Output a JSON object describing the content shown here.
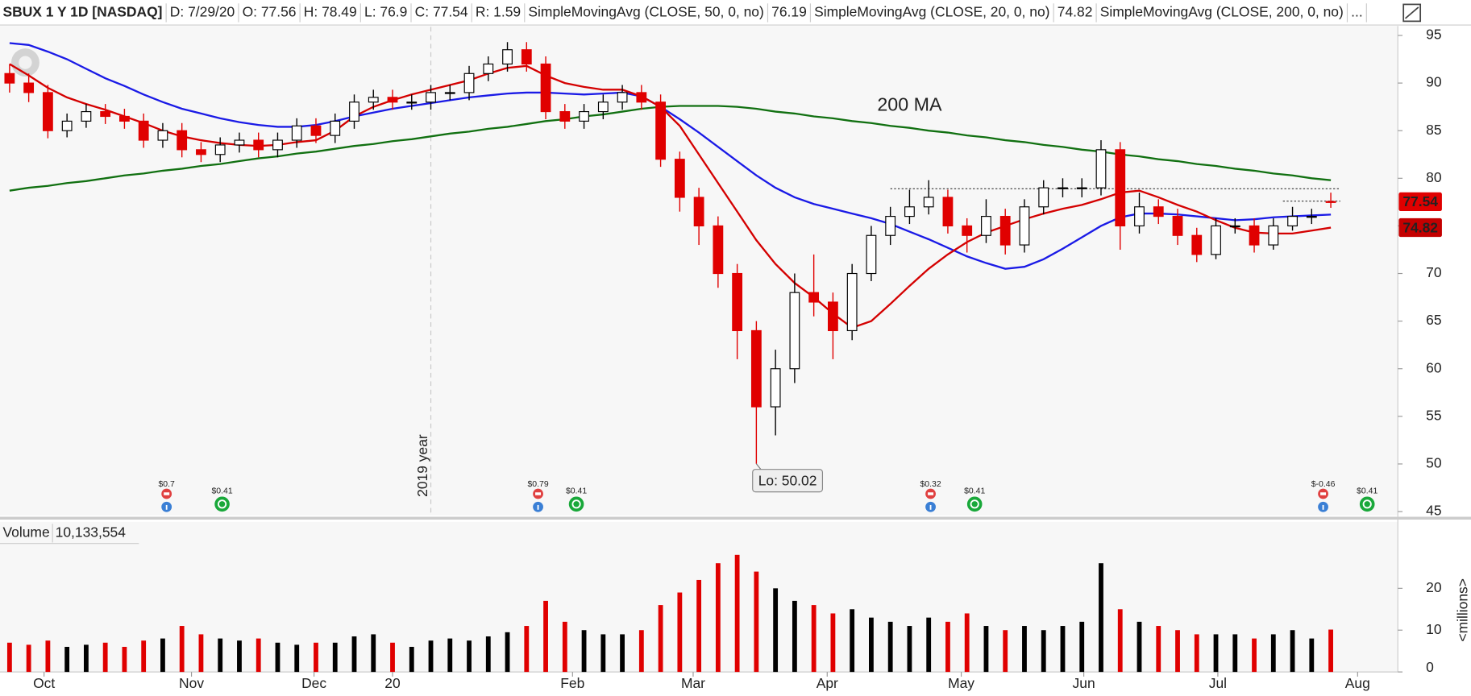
{
  "chart_data": {
    "type": "candlestick",
    "header": {
      "symbol": "SBUX 1 Y 1D [NASDAQ]",
      "fields": [
        "D: 7/29/20",
        "O: 77.56",
        "H: 78.49",
        "L: 76.9",
        "C: 77.54",
        "R: 1.59"
      ],
      "more": "..."
    },
    "xlim": [
      -0.5,
      72.5
    ],
    "xticks": [
      {
        "value": 1.8,
        "label": "Oct"
      },
      {
        "value": 9.5,
        "label": "Nov"
      },
      {
        "value": 15.9,
        "label": "Dec"
      },
      {
        "value": 20,
        "label": "20"
      },
      {
        "value": 29.4,
        "label": "Feb"
      },
      {
        "value": 35.7,
        "label": "Mar"
      },
      {
        "value": 42.7,
        "label": "Apr"
      },
      {
        "value": 49.7,
        "label": "May"
      },
      {
        "value": 56.1,
        "label": "Jun"
      },
      {
        "value": 63.1,
        "label": "Jul"
      },
      {
        "value": 70.4,
        "label": "Aug"
      }
    ],
    "ylim": [
      44.7,
      95.9
    ],
    "yticks": [
      45,
      50,
      55,
      60,
      65,
      70,
      75,
      80,
      85,
      90,
      95
    ],
    "colors": {
      "up": "#000000",
      "down": "#e00000"
    },
    "candles": {
      "open": [
        91,
        90,
        89,
        85,
        86,
        87,
        86.5,
        86,
        84,
        85,
        83,
        82.5,
        83.5,
        84,
        83,
        84,
        85.5,
        84.5,
        86,
        88,
        88.5,
        88,
        88,
        89,
        89,
        91,
        92,
        93.5,
        92,
        87,
        86,
        87,
        88,
        89,
        88,
        82,
        78,
        75,
        70,
        64,
        56,
        60,
        68,
        67,
        64,
        70,
        74,
        76,
        77,
        78,
        75,
        74,
        76,
        73,
        77,
        79,
        79,
        79,
        83,
        75,
        77,
        76,
        74,
        72,
        75,
        75,
        73,
        75,
        76,
        77.56
      ],
      "high": [
        92,
        91,
        89.8,
        86.8,
        87.8,
        87.8,
        87.3,
        86.8,
        85.8,
        85.8,
        83.8,
        84.3,
        84.8,
        84.8,
        84.8,
        86.3,
        86.3,
        86.8,
        88.8,
        89.3,
        89.3,
        88.8,
        89.8,
        89.8,
        91.8,
        92.8,
        94.3,
        94.3,
        92.8,
        87.8,
        87.8,
        88.8,
        89.8,
        89.8,
        88.8,
        82.8,
        79,
        76,
        71,
        65,
        62,
        70,
        72,
        68,
        71,
        75,
        77,
        78.8,
        79.8,
        78.8,
        75.8,
        77.8,
        76.8,
        77.8,
        79.8,
        80,
        80,
        84,
        83.8,
        78.5,
        77.8,
        76.8,
        74.8,
        75.8,
        75.8,
        75.8,
        75.8,
        77,
        76.8,
        78.49
      ],
      "low": [
        89,
        88,
        84.2,
        84.3,
        85.3,
        85.7,
        85.2,
        83.2,
        83.2,
        82.2,
        81.7,
        81.7,
        82.7,
        82.2,
        82.2,
        83.2,
        83.7,
        83.7,
        85.2,
        87.2,
        87.2,
        87.2,
        87.2,
        88.2,
        88.2,
        90.2,
        91.2,
        91.2,
        86.2,
        85.2,
        85.2,
        86.2,
        87.2,
        87.2,
        81.2,
        76.5,
        73,
        68.5,
        61,
        50.02,
        53,
        58.5,
        65.5,
        61,
        63,
        69.2,
        73,
        75.2,
        76.2,
        74.2,
        72.2,
        73.2,
        72,
        72.2,
        76.2,
        78,
        78,
        78.2,
        72.5,
        74.2,
        75.2,
        73,
        71.2,
        71.5,
        74.2,
        72.2,
        72.5,
        74.5,
        75.2,
        76.9
      ],
      "close": [
        90,
        89,
        85,
        86,
        87,
        86.5,
        86,
        84,
        85,
        83,
        82.5,
        83.5,
        84,
        83,
        84,
        85.5,
        84.5,
        86,
        88,
        88.5,
        88,
        88,
        89,
        89,
        91,
        92,
        93.5,
        92,
        87,
        86,
        87,
        88,
        89,
        88,
        82,
        78,
        75,
        70,
        64,
        56,
        60,
        68,
        67,
        64,
        70,
        74,
        76,
        77,
        78,
        75,
        74,
        76,
        73,
        77,
        79,
        79,
        79,
        83,
        75,
        77,
        76,
        74,
        72,
        75,
        75,
        73,
        75,
        76,
        76,
        77.54
      ]
    },
    "series": [
      {
        "name": "SimpleMovingAvg (CLOSE, 50, 0, no)",
        "color": "#1a1ae6",
        "last": 76.19,
        "values": [
          94.2,
          94,
          93.3,
          92.5,
          91.5,
          90.5,
          89.7,
          88.8,
          88,
          87.3,
          86.8,
          86.3,
          85.9,
          85.6,
          85.4,
          85.4,
          85.6,
          86,
          86.5,
          86.9,
          87.3,
          87.6,
          87.9,
          88.2,
          88.5,
          88.7,
          88.9,
          89,
          89,
          88.9,
          88.8,
          88.9,
          89,
          88.6,
          87.5,
          86.2,
          84.8,
          83.3,
          81.8,
          80.3,
          79,
          78,
          77.3,
          76.8,
          76.3,
          75.8,
          75.2,
          74.4,
          73.6,
          72.7,
          71.8,
          71.1,
          70.5,
          70.7,
          71.5,
          72.6,
          73.8,
          75,
          75.9,
          76.3,
          76.3,
          76.2,
          76,
          75.8,
          75.6,
          75.7,
          75.9,
          76,
          76.1,
          76.19
        ]
      },
      {
        "name": "SimpleMovingAvg (CLOSE, 20, 0, no)",
        "color": "#d40000",
        "last": 74.82,
        "values": [
          92,
          90.8,
          89.5,
          88.5,
          87.8,
          87.2,
          86.5,
          85.8,
          85,
          84.4,
          84,
          83.7,
          83.5,
          83.4,
          83.5,
          83.8,
          84,
          85,
          86.5,
          87.5,
          88.2,
          88.8,
          89.3,
          89.8,
          90.3,
          91,
          91.6,
          91.8,
          90.8,
          90,
          89.6,
          89.3,
          89.3,
          88.6,
          87.5,
          85.5,
          82.5,
          79.5,
          76.5,
          73.5,
          71,
          69,
          67.5,
          65.8,
          64.3,
          65,
          66.8,
          68.7,
          70.5,
          72,
          73.3,
          74.3,
          75,
          75.7,
          76.3,
          76.8,
          77.2,
          77.8,
          78.5,
          78.7,
          78,
          77.2,
          76.5,
          75.6,
          74.8,
          74.3,
          74.2,
          74.2,
          74.5,
          74.82
        ]
      },
      {
        "name": "SimpleMovingAvg (CLOSE, 200, 0, no)",
        "color": "#117011",
        "values": [
          78.7,
          79.0,
          79.2,
          79.5,
          79.7,
          80.0,
          80.3,
          80.5,
          80.8,
          81.0,
          81.3,
          81.5,
          81.8,
          82.1,
          82.3,
          82.6,
          82.8,
          83.1,
          83.4,
          83.6,
          83.9,
          84.1,
          84.4,
          84.7,
          84.9,
          85.2,
          85.4,
          85.7,
          86.0,
          86.2,
          86.5,
          86.7,
          87.0,
          87.3,
          87.5,
          87.6,
          87.6,
          87.6,
          87.5,
          87.3,
          87.0,
          86.8,
          86.5,
          86.3,
          86.0,
          85.8,
          85.5,
          85.3,
          85.0,
          84.8,
          84.5,
          84.3,
          84.0,
          83.8,
          83.5,
          83.3,
          83.0,
          82.8,
          82.5,
          82.3,
          82.0,
          81.8,
          81.5,
          81.3,
          81.0,
          80.8,
          80.5,
          80.3,
          80.0,
          79.8
        ]
      }
    ],
    "price_tags": [
      {
        "value": 77.54,
        "color": "#e00000"
      },
      {
        "value": 74.82,
        "color": "#c40000"
      }
    ],
    "annotations": [
      {
        "text": "200 MA",
        "x": 47,
        "y": 87.6,
        "color": "#117011"
      }
    ],
    "low_label": {
      "x": 39,
      "value": 50.02,
      "label": "Lo: 50.02"
    },
    "year_marker": {
      "x": 22,
      "label": "2019 year"
    },
    "levels": [
      {
        "value": 78.9,
        "from": 46,
        "to": 69.5
      },
      {
        "value": 77.6,
        "from": 66.5,
        "to": 69.5
      }
    ],
    "events": [
      {
        "type": "earnings",
        "x": 8.2,
        "label": "$0.7"
      },
      {
        "type": "dividend",
        "x": 11.1,
        "label": "$0.41"
      },
      {
        "type": "earnings",
        "x": 27.6,
        "label": "$0.79"
      },
      {
        "type": "dividend",
        "x": 29.6,
        "label": "$0.41"
      },
      {
        "type": "earnings",
        "x": 48.1,
        "label": "$0.32"
      },
      {
        "type": "dividend",
        "x": 50.4,
        "label": "$0.41"
      },
      {
        "type": "earnings",
        "x": 68.6,
        "label": "$-0.46"
      },
      {
        "type": "dividend",
        "x": 70.9,
        "label": "$0.41"
      }
    ],
    "volume": {
      "name": "Volume",
      "last": {
        "value": 10.133554,
        "label": "10,133,554"
      },
      "axis_label": "<millions>",
      "ylim": [
        0,
        30.5
      ],
      "yticks": [
        0,
        10,
        20
      ],
      "values": [
        7,
        6.5,
        7.5,
        6,
        6.5,
        7,
        6,
        7.5,
        8,
        11,
        9,
        8,
        7.5,
        8,
        7,
        6.5,
        7,
        7,
        8.5,
        9,
        7,
        6,
        7.5,
        8,
        7.5,
        8.5,
        9.5,
        11,
        17,
        12,
        10,
        9,
        9,
        10,
        16,
        19,
        22,
        26,
        28,
        24,
        20,
        17,
        16,
        14,
        15,
        13,
        12,
        11,
        13,
        12,
        14,
        11,
        10,
        11,
        10,
        11,
        12,
        26,
        15,
        12,
        11,
        10,
        9,
        9,
        9,
        8,
        9,
        10,
        8,
        10.133554
      ]
    }
  }
}
